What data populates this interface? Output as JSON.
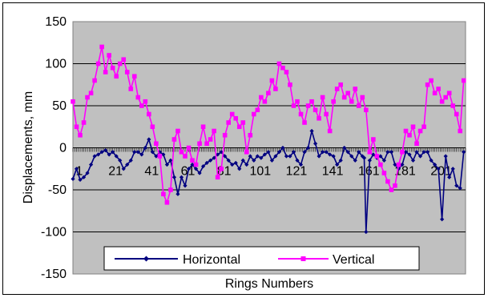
{
  "chart_data": {
    "type": "line",
    "xlabel": "Rings Numbers",
    "ylabel": "Displacements, mm",
    "ylim": [
      -150,
      150
    ],
    "yticks": [
      -150,
      -100,
      -50,
      0,
      50,
      100,
      150
    ],
    "xlim": [
      1,
      218
    ],
    "x_tick_labels": [
      "1",
      "21",
      "41",
      "61",
      "81",
      "101",
      "121",
      "141",
      "161",
      "181",
      "201"
    ],
    "x_tick_values": [
      1,
      21,
      41,
      61,
      81,
      101,
      121,
      141,
      161,
      181,
      201
    ],
    "grid": "horizontal",
    "legend_position": "bottom",
    "plot_background": "#c0c0c0",
    "series": [
      {
        "name": "Horizontal",
        "color": "#000080",
        "marker": "diamond",
        "x": [
          1,
          3,
          5,
          7,
          9,
          11,
          13,
          15,
          17,
          19,
          21,
          23,
          25,
          27,
          29,
          31,
          33,
          35,
          37,
          39,
          41,
          43,
          45,
          47,
          49,
          51,
          53,
          55,
          57,
          59,
          61,
          63,
          65,
          67,
          69,
          71,
          73,
          75,
          77,
          79,
          81,
          83,
          85,
          87,
          89,
          91,
          93,
          95,
          97,
          99,
          101,
          103,
          105,
          107,
          109,
          111,
          113,
          115,
          117,
          119,
          121,
          123,
          125,
          127,
          129,
          131,
          133,
          135,
          137,
          139,
          141,
          143,
          145,
          147,
          149,
          151,
          153,
          155,
          157,
          159,
          161,
          162,
          163,
          165,
          167,
          169,
          171,
          173,
          175,
          177,
          179,
          181,
          183,
          185,
          187,
          189,
          191,
          193,
          195,
          197,
          199,
          201,
          203,
          205,
          207,
          209,
          211,
          213,
          215,
          217
        ],
        "values": [
          -37,
          -25,
          -38,
          -35,
          -30,
          -20,
          -10,
          -8,
          -5,
          -3,
          -8,
          -5,
          -10,
          -15,
          -25,
          -20,
          -15,
          -5,
          -5,
          -8,
          0,
          10,
          -5,
          -10,
          -5,
          -8,
          -20,
          -15,
          -35,
          -55,
          -35,
          -45,
          -25,
          -20,
          -25,
          -30,
          -22,
          -18,
          -15,
          -12,
          -8,
          -5,
          -10,
          -15,
          -20,
          -18,
          -25,
          -15,
          -20,
          -10,
          -15,
          -10,
          -12,
          -8,
          -5,
          -15,
          -10,
          -5,
          0,
          -10,
          -10,
          -5,
          -15,
          -20,
          -5,
          0,
          20,
          5,
          -10,
          -5,
          -5,
          -8,
          -10,
          -20,
          -15,
          0,
          -5,
          -10,
          -15,
          -5,
          -10,
          -12,
          -100,
          -15,
          -8,
          -12,
          -10,
          -15,
          -5,
          -5,
          -20,
          -25,
          -20,
          -5,
          -8,
          -15,
          -5,
          -10,
          -5,
          -5,
          -15,
          -20,
          -25,
          -85,
          -10,
          -35,
          -25,
          -45,
          -48,
          -5
        ]
      },
      {
        "name": "Vertical",
        "color": "#ff00ff",
        "marker": "square",
        "x": [
          1,
          3,
          5,
          7,
          9,
          11,
          13,
          15,
          17,
          19,
          21,
          23,
          25,
          27,
          29,
          31,
          33,
          35,
          37,
          39,
          41,
          43,
          45,
          47,
          49,
          51,
          53,
          55,
          57,
          59,
          61,
          63,
          65,
          67,
          69,
          71,
          73,
          75,
          77,
          79,
          81,
          83,
          85,
          87,
          89,
          91,
          93,
          95,
          97,
          99,
          101,
          103,
          105,
          107,
          109,
          111,
          113,
          115,
          117,
          119,
          121,
          123,
          125,
          127,
          129,
          131,
          133,
          135,
          137,
          139,
          141,
          143,
          145,
          147,
          149,
          151,
          153,
          155,
          157,
          159,
          161,
          163,
          165,
          167,
          169,
          171,
          173,
          175,
          177,
          179,
          181,
          183,
          185,
          187,
          189,
          191,
          193,
          195,
          197,
          199,
          201,
          203,
          205,
          207,
          209,
          211,
          213,
          215,
          217
        ],
        "values": [
          55,
          25,
          15,
          30,
          60,
          65,
          80,
          100,
          120,
          90,
          110,
          95,
          85,
          100,
          105,
          90,
          70,
          85,
          60,
          50,
          55,
          40,
          25,
          5,
          -10,
          -55,
          -65,
          -50,
          10,
          20,
          -5,
          -10,
          0,
          -15,
          -20,
          5,
          25,
          5,
          10,
          20,
          -35,
          -25,
          15,
          30,
          40,
          35,
          25,
          30,
          -5,
          15,
          40,
          45,
          60,
          55,
          65,
          80,
          70,
          100,
          95,
          90,
          75,
          50,
          55,
          40,
          30,
          50,
          55,
          45,
          35,
          60,
          40,
          20,
          55,
          70,
          75,
          60,
          65,
          55,
          70,
          50,
          60,
          45,
          -5,
          10,
          -10,
          -20,
          -30,
          -40,
          -50,
          -45,
          -20,
          -5,
          20,
          15,
          25,
          5,
          20,
          25,
          75,
          80,
          65,
          70,
          55,
          60,
          65,
          50,
          40,
          20,
          80
        ]
      }
    ]
  }
}
